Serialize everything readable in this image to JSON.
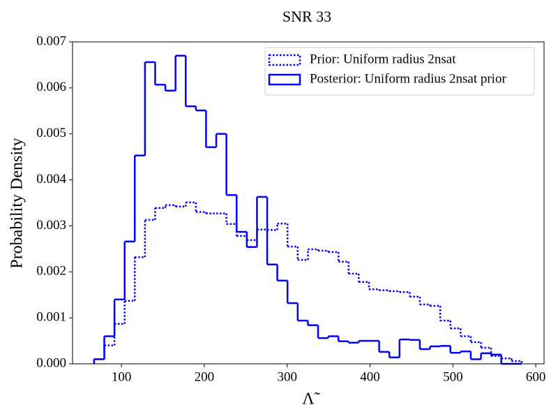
{
  "chart_data": {
    "type": "histogram",
    "title": "SNR 33",
    "xlabel": "Λ̃",
    "ylabel": "Probability Density",
    "bins": [
      67,
      79.3,
      91.6,
      103.9,
      116.1,
      128.4,
      140.7,
      153.0,
      165.3,
      177.6,
      189.9,
      202.1,
      214.4,
      226.7,
      239.0,
      251.3,
      263.6,
      275.9,
      288.1,
      300.4,
      312.7,
      325.0,
      337.3,
      349.6,
      361.9,
      374.1,
      386.4,
      398.7,
      411.0,
      423.3,
      435.6,
      447.9,
      460.1,
      472.4,
      484.7,
      497.0,
      509.3,
      521.6,
      533.9,
      546.1,
      558.4,
      570.7,
      583.0
    ],
    "series": [
      {
        "name": "Prior: Uniform radius 2nsat",
        "color": "#0000ff",
        "linestyle": "dotted",
        "values": [
          0.0001,
          0.0004,
          0.00087,
          0.00137,
          0.00232,
          0.00313,
          0.00339,
          0.00345,
          0.00342,
          0.00351,
          0.0033,
          0.00327,
          0.00327,
          0.00304,
          0.00278,
          0.00269,
          0.00292,
          0.00291,
          0.00305,
          0.00255,
          0.00226,
          0.00249,
          0.00246,
          0.00243,
          0.00222,
          0.00196,
          0.00178,
          0.00162,
          0.0016,
          0.00158,
          0.00156,
          0.00146,
          0.00129,
          0.00126,
          0.00094,
          0.00077,
          0.0006,
          0.00047,
          0.00035,
          0.00017,
          0.00012,
          6e-05
        ]
      },
      {
        "name": "Posterior: Uniform radius 2nsat prior",
        "color": "#0000ff",
        "linestyle": "solid",
        "values": [
          0.0001,
          0.0006,
          0.0014,
          0.00266,
          0.00453,
          0.00656,
          0.00607,
          0.00594,
          0.0067,
          0.0056,
          0.00551,
          0.00471,
          0.005,
          0.00367,
          0.00287,
          0.00254,
          0.00363,
          0.00216,
          0.00181,
          0.00132,
          0.00094,
          0.00084,
          0.00056,
          0.0006,
          0.00049,
          0.00046,
          0.0005,
          0.0005,
          0.00026,
          0.00014,
          0.00053,
          0.00052,
          0.00032,
          0.00038,
          0.00039,
          0.00024,
          0.00027,
          0.0001,
          0.00023,
          0.0002,
          0,
          0
        ]
      }
    ],
    "xlim": [
      41,
      610
    ],
    "xticks": [
      100,
      200,
      300,
      400,
      500,
      600
    ],
    "ylim": [
      0,
      0.007
    ],
    "yticks": [
      {
        "value": 0,
        "label": "0.000"
      },
      0.001,
      0.002,
      0.003,
      0.004,
      0.005,
      0.006,
      0.007
    ],
    "legend": "upper right"
  }
}
